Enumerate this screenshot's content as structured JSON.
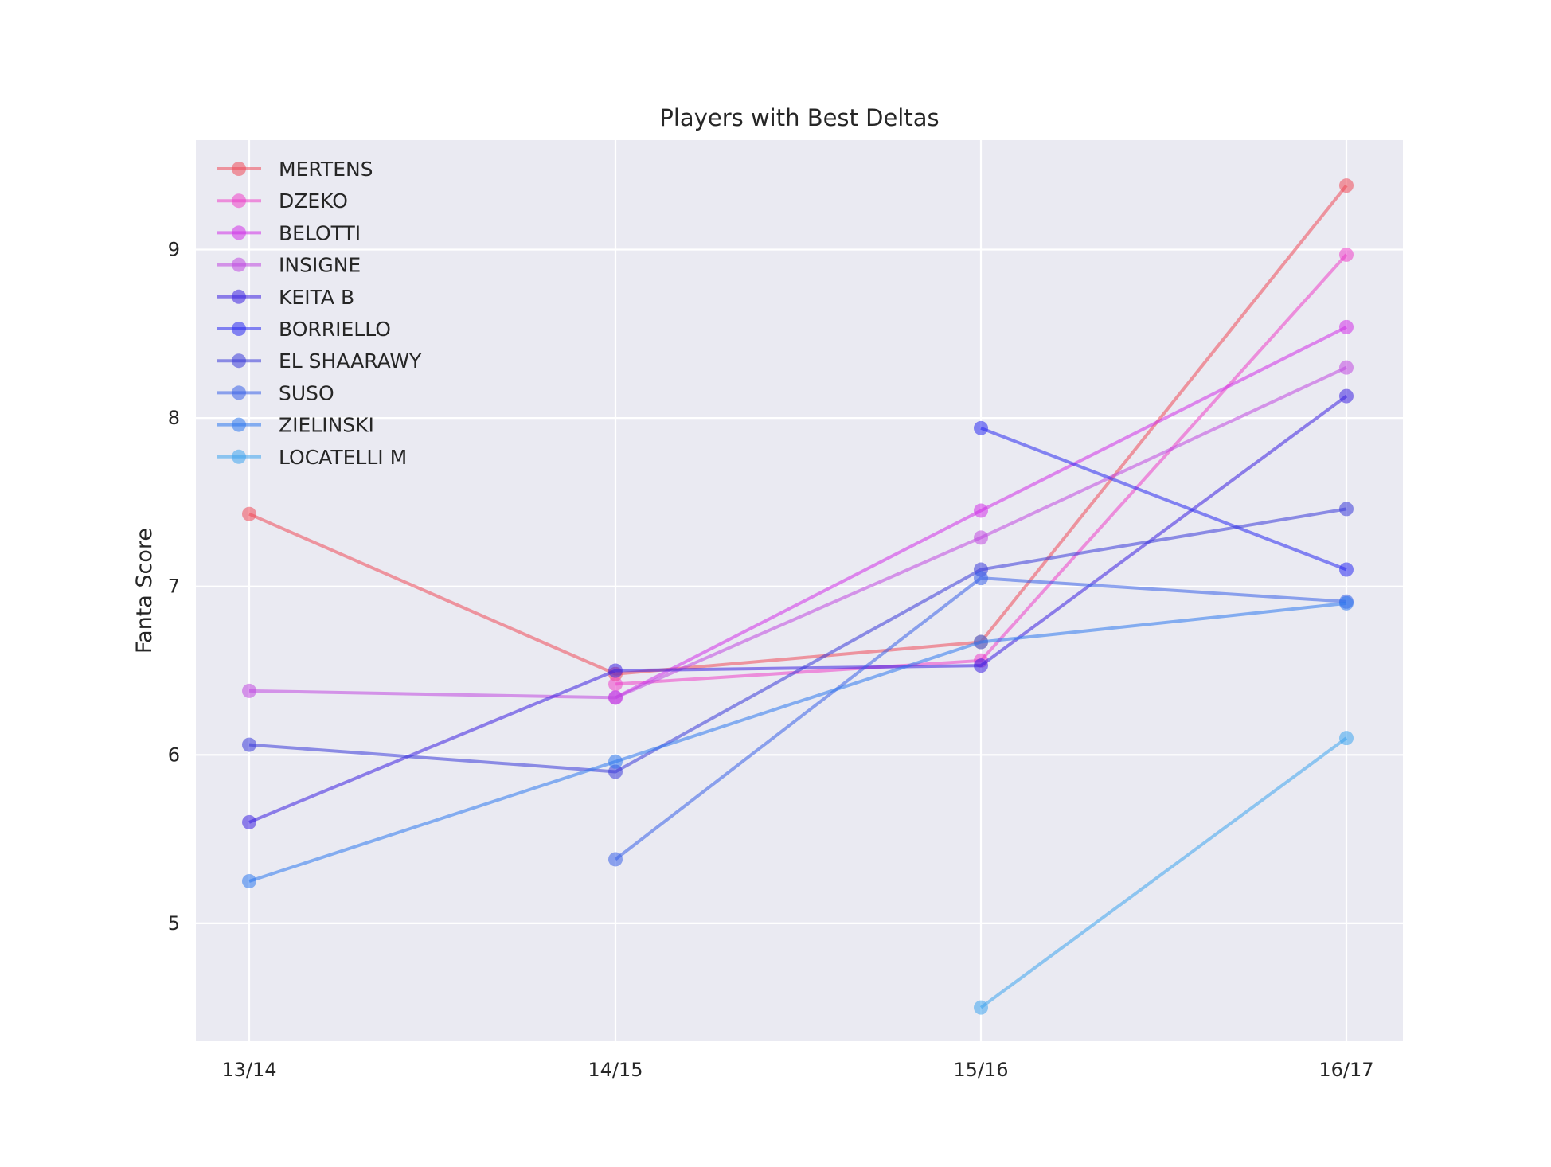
{
  "chart_data": {
    "type": "line",
    "title": "Players with Best Deltas",
    "xlabel": "",
    "ylabel": "Fanta Score",
    "categories": [
      "13/14",
      "14/15",
      "15/16",
      "16/17"
    ],
    "yticks": [
      5,
      6,
      7,
      8,
      9
    ],
    "ylim": [
      4.3,
      9.65
    ],
    "grid": true,
    "legend_position": "top-left",
    "series": [
      {
        "name": "MERTENS",
        "color": "#ee4a5a",
        "values": [
          7.43,
          6.48,
          6.67,
          9.38
        ]
      },
      {
        "name": "DZEKO",
        "color": "#ec3fc8",
        "values": [
          null,
          6.42,
          6.56,
          8.97
        ]
      },
      {
        "name": "BELOTTI",
        "color": "#d030e8",
        "values": [
          null,
          6.34,
          7.45,
          8.54
        ]
      },
      {
        "name": "INSIGNE",
        "color": "#c048e0",
        "values": [
          6.38,
          6.34,
          7.29,
          8.3
        ]
      },
      {
        "name": "KEITA B",
        "color": "#3c20e0",
        "values": [
          5.6,
          6.5,
          6.53,
          8.13
        ]
      },
      {
        "name": "BORRIELLO",
        "color": "#2a2af0",
        "values": [
          null,
          null,
          7.94,
          7.1
        ]
      },
      {
        "name": "EL SHAARAWY",
        "color": "#3a3ad8",
        "values": [
          6.06,
          5.9,
          7.1,
          7.46
        ]
      },
      {
        "name": "SUSO",
        "color": "#3860e8",
        "values": [
          null,
          5.38,
          7.05,
          6.91
        ]
      },
      {
        "name": "ZIELINSKI",
        "color": "#2e78ee",
        "values": [
          5.25,
          5.96,
          6.67,
          6.9
        ]
      },
      {
        "name": "LOCATELLI M",
        "color": "#3ea4ee",
        "values": [
          null,
          null,
          4.5,
          6.1
        ]
      }
    ]
  }
}
